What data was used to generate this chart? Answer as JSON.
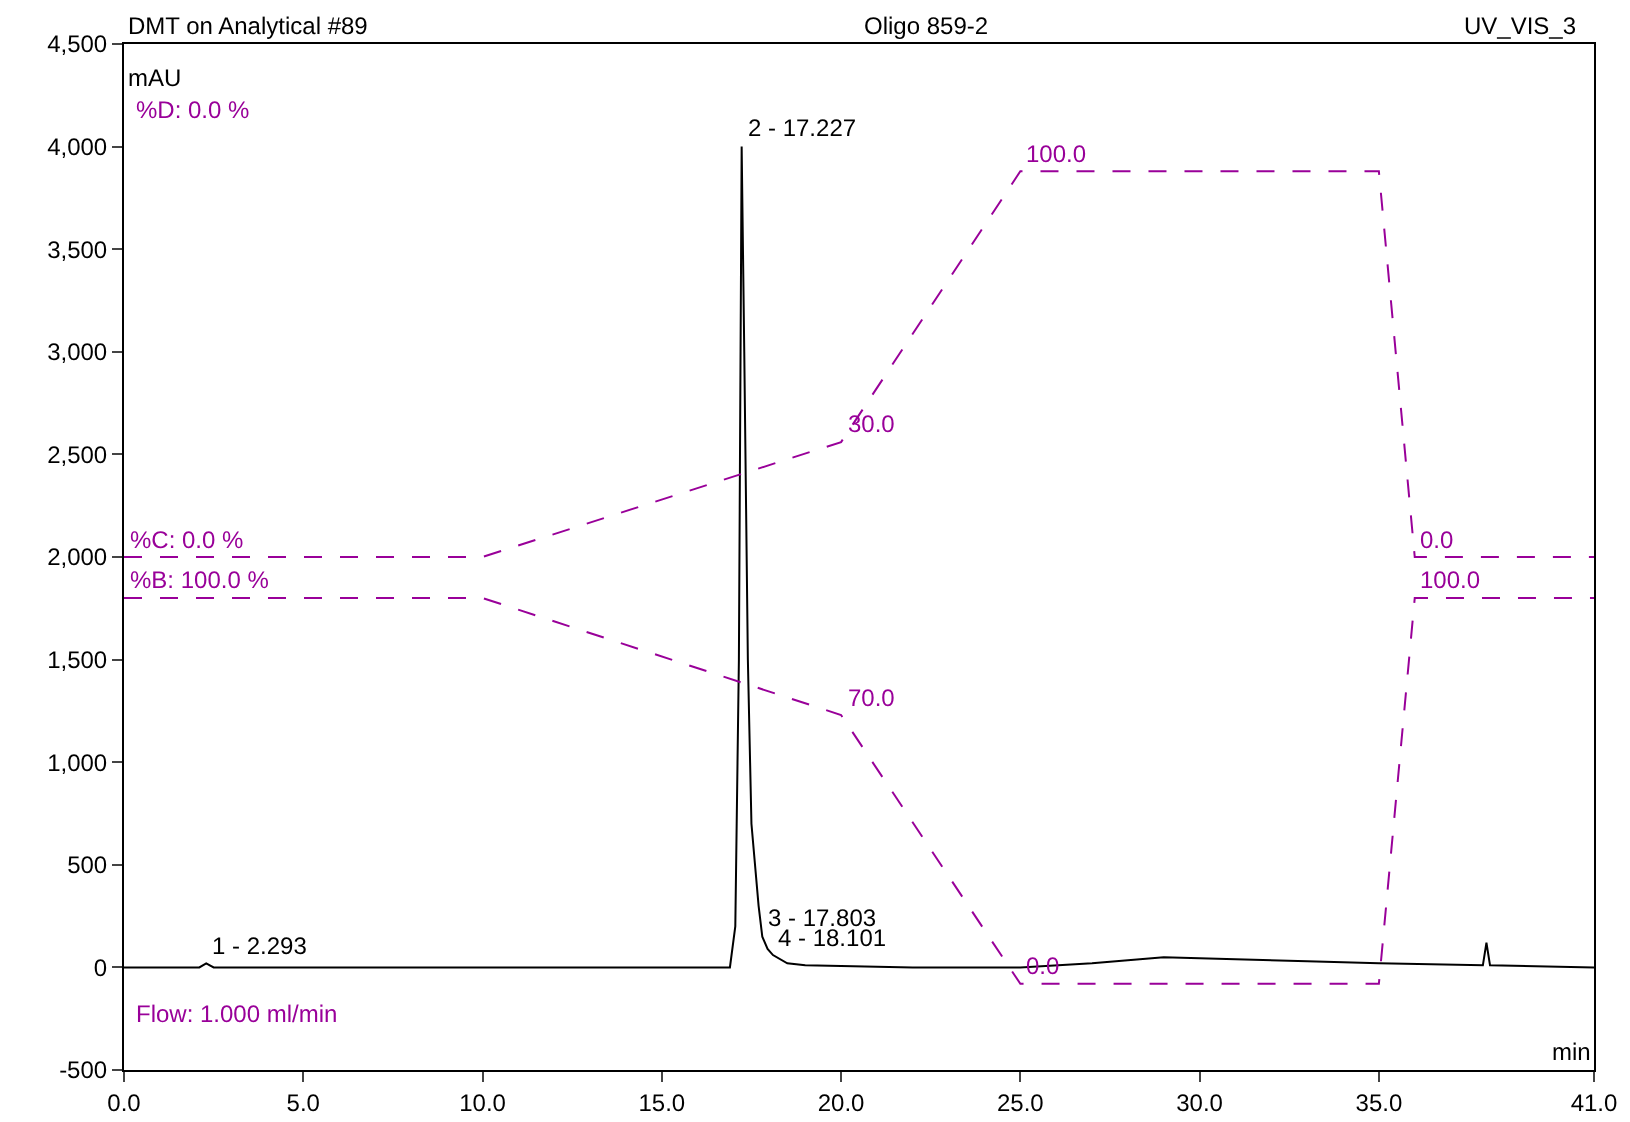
{
  "chart_data": {
    "type": "line",
    "title": "DMT on Analytical #89",
    "subtitle": "Oligo 859-2",
    "xlabel": "min",
    "ylabel": "mAU",
    "xlim": [
      0,
      41
    ],
    "xticks": [
      {
        "value": 0,
        "label": "0.0"
      },
      {
        "value": 5,
        "label": "5.0"
      },
      {
        "value": 10,
        "label": "10.0"
      },
      {
        "value": 15,
        "label": "15.0"
      },
      {
        "value": 20,
        "label": "20.0"
      },
      {
        "value": 25,
        "label": "25.0"
      },
      {
        "value": 30,
        "label": "30.0"
      },
      {
        "value": 35,
        "label": "35.0"
      },
      {
        "value": 41,
        "label": "41.0"
      }
    ],
    "ylim": [
      -500,
      4500
    ],
    "yticks": [
      {
        "value": -500,
        "label": "-500"
      },
      0,
      500,
      {
        "value": 1000,
        "label": "1,000"
      },
      {
        "value": 1500,
        "label": "1,500"
      },
      {
        "value": 2000,
        "label": "2,000"
      },
      {
        "value": 2500,
        "label": "2,500"
      },
      {
        "value": 3000,
        "label": "3,000"
      },
      {
        "value": 3500,
        "label": "3,500"
      },
      {
        "value": 4000,
        "label": "4,000"
      },
      {
        "value": 4500,
        "label": "4,500"
      }
    ],
    "grid": false,
    "marker": "none",
    "series": [
      {
        "color": "#000000",
        "line_style": "solid",
        "x": [
          0,
          2.1,
          2.293,
          2.5,
          16.9,
          17.05,
          17.15,
          17.227,
          17.3,
          17.4,
          17.5,
          17.7,
          17.803,
          17.95,
          18.101,
          18.5,
          19,
          22,
          25,
          27,
          29,
          31,
          33,
          35,
          37.9,
          38,
          38.1,
          41
        ],
        "values": [
          0,
          0,
          20,
          0,
          0,
          200,
          1500,
          4000,
          3000,
          1500,
          700,
          300,
          150,
          90,
          60,
          20,
          10,
          0,
          0,
          20,
          50,
          40,
          30,
          20,
          10,
          120,
          10,
          0
        ]
      },
      {
        "color": "#990099",
        "line_style": "dashed",
        "x": [
          0,
          10,
          20,
          25,
          35,
          36,
          41
        ],
        "values": [
          2000,
          2000,
          2560,
          3880,
          3880,
          2000,
          2000
        ]
      },
      {
        "color": "#990099",
        "line_style": "dashed",
        "x": [
          0,
          10,
          20,
          25,
          35,
          36,
          41
        ],
        "values": [
          1800,
          1800,
          1230,
          -80,
          -80,
          1800,
          1800
        ]
      }
    ],
    "annotations": [
      "%D: 0.0 %",
      "Flow: 1.000 ml/min",
      "UV_VIS_3",
      {
        "text": "%C: 0.0 %",
        "x": 0,
        "y": 2000
      },
      {
        "text": "%B: 100.0 %",
        "x": 0,
        "y": 1800
      },
      {
        "text": "30.0",
        "x": 20,
        "y": 2560
      },
      {
        "text": "100.0",
        "x": 25,
        "y": 3880
      },
      {
        "text": "70.0",
        "x": 20,
        "y": 1230
      },
      {
        "text": "0.0",
        "x": 25,
        "y": -80
      },
      {
        "text": "0.0",
        "x": 36,
        "y": 2000
      },
      {
        "text": "100.0",
        "x": 36,
        "y": 1800
      },
      {
        "text": "1 - 2.293",
        "x": 2.293,
        "y": 20
      },
      {
        "text": "2 - 17.227",
        "x": 17.227,
        "y": 4000
      },
      {
        "text": "3 - 17.803",
        "x": 17.803,
        "y": 150
      },
      {
        "text": "4 - 18.101",
        "x": 18.101,
        "y": 60
      }
    ]
  }
}
